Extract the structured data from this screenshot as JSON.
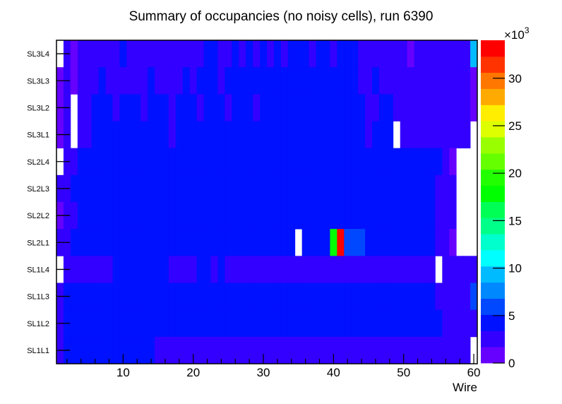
{
  "chart_data": {
    "type": "heatmap",
    "title": "Summary of occupancies (no noisy cells), run 6390",
    "xlabel": "Wire",
    "ylabel": "",
    "xlim": [
      0.5,
      60.5
    ],
    "x_ticks": [
      "10",
      "20",
      "30",
      "40",
      "50",
      "60"
    ],
    "x_tick_values": [
      10,
      20,
      30,
      40,
      50,
      60
    ],
    "y_categories_top_to_bottom": [
      "SL3L4",
      "SL3L3",
      "SL3L2",
      "SL3L1",
      "SL2L4",
      "SL2L3",
      "SL2L2",
      "SL2L1",
      "SL1L4",
      "SL1L3",
      "SL1L2",
      "SL1L1"
    ],
    "z_units_note": "x10^3",
    "colorbar": {
      "multiplier_label": "×10",
      "multiplier_exponent": "3",
      "zlim": [
        0,
        34
      ],
      "ticks": [
        "0",
        "5",
        "10",
        "15",
        "20",
        "25",
        "30"
      ],
      "tick_values": [
        0,
        5,
        10,
        15,
        20,
        25,
        30
      ],
      "palette": [
        "#6600ff",
        "#3300ff",
        "#0011ff",
        "#0048ff",
        "#0088ff",
        "#00bbff",
        "#00ffff",
        "#00ffcc",
        "#00ff88",
        "#00ff55",
        "#00ff00",
        "#22ff00",
        "#66ff00",
        "#99ff00",
        "#ddff00",
        "#ffee00",
        "#ffaa00",
        "#ff7700",
        "#ff3300",
        "#ff0000"
      ]
    },
    "rows_run_length": [
      {
        "label": "SL3L4",
        "runs": [
          [
            null,
            1
          ],
          [
            2.55,
            1
          ],
          [
            0.85,
            1
          ],
          [
            2.55,
            6
          ],
          [
            4.25,
            1
          ],
          [
            2.55,
            11
          ],
          [
            4.25,
            2
          ],
          [
            2.55,
            2
          ],
          [
            4.25,
            1
          ],
          [
            2.55,
            1
          ],
          [
            4.25,
            1
          ],
          [
            2.55,
            1
          ],
          [
            4.25,
            1
          ],
          [
            2.55,
            1
          ],
          [
            4.25,
            1
          ],
          [
            2.55,
            1
          ],
          [
            4.25,
            3
          ],
          [
            2.55,
            1
          ],
          [
            4.25,
            2
          ],
          [
            2.55,
            1
          ],
          [
            4.25,
            3
          ],
          [
            2.55,
            7
          ],
          [
            0.85,
            1
          ],
          [
            2.55,
            8
          ],
          [
            9.35,
            1
          ]
        ]
      },
      {
        "label": "SL3L3",
        "runs": [
          [
            0.85,
            1
          ],
          [
            2.55,
            1
          ],
          [
            0.85,
            1
          ],
          [
            2.55,
            3
          ],
          [
            4.25,
            1
          ],
          [
            2.55,
            6
          ],
          [
            4.25,
            1
          ],
          [
            2.55,
            4
          ],
          [
            4.25,
            1
          ],
          [
            2.55,
            1
          ],
          [
            4.25,
            3
          ],
          [
            2.55,
            1
          ],
          [
            4.25,
            19
          ],
          [
            2.55,
            2
          ],
          [
            4.25,
            1
          ],
          [
            2.55,
            13
          ],
          [
            0.85,
            1
          ]
        ]
      },
      {
        "label": "SL3L2",
        "runs": [
          [
            0.85,
            1
          ],
          [
            2.55,
            1
          ],
          [
            null,
            1
          ],
          [
            2.55,
            2
          ],
          [
            4.25,
            3
          ],
          [
            2.55,
            1
          ],
          [
            4.25,
            3
          ],
          [
            2.55,
            1
          ],
          [
            4.25,
            3
          ],
          [
            2.55,
            1
          ],
          [
            4.25,
            3
          ],
          [
            2.55,
            1
          ],
          [
            4.25,
            3
          ],
          [
            2.55,
            1
          ],
          [
            4.25,
            3
          ],
          [
            2.55,
            1
          ],
          [
            4.25,
            15
          ],
          [
            2.55,
            2
          ],
          [
            4.25,
            2
          ],
          [
            2.55,
            11
          ],
          [
            0.85,
            1
          ]
        ]
      },
      {
        "label": "SL3L1",
        "runs": [
          [
            0.85,
            1
          ],
          [
            2.55,
            1
          ],
          [
            null,
            1
          ],
          [
            2.55,
            2
          ],
          [
            4.25,
            11
          ],
          [
            2.55,
            1
          ],
          [
            4.25,
            27
          ],
          [
            2.55,
            1
          ],
          [
            4.25,
            3
          ],
          [
            null,
            1
          ],
          [
            2.55,
            10
          ],
          [
            null,
            1
          ]
        ]
      },
      {
        "label": "SL2L4",
        "runs": [
          [
            null,
            1
          ],
          [
            2.55,
            2
          ],
          [
            4.25,
            52
          ],
          [
            2.55,
            1
          ],
          [
            0.85,
            1
          ],
          [
            null,
            3
          ]
        ]
      },
      {
        "label": "SL2L3",
        "runs": [
          [
            2.55,
            2
          ],
          [
            4.25,
            52
          ],
          [
            2.55,
            3
          ],
          [
            null,
            3
          ]
        ]
      },
      {
        "label": "SL2L2",
        "runs": [
          [
            0.85,
            1
          ],
          [
            2.55,
            2
          ],
          [
            4.25,
            51
          ],
          [
            2.55,
            3
          ],
          [
            null,
            3
          ]
        ]
      },
      {
        "label": "SL2L1",
        "runs": [
          [
            2.55,
            2
          ],
          [
            4.25,
            32
          ],
          [
            null,
            1
          ],
          [
            4.25,
            4
          ],
          [
            17.85,
            1
          ],
          [
            33.15,
            1
          ],
          [
            5.95,
            3
          ],
          [
            4.25,
            10
          ],
          [
            2.55,
            2
          ],
          [
            0.85,
            1
          ],
          [
            null,
            3
          ]
        ]
      },
      {
        "label": "SL1L4",
        "runs": [
          [
            null,
            1
          ],
          [
            2.55,
            7
          ],
          [
            4.25,
            8
          ],
          [
            2.55,
            4
          ],
          [
            4.25,
            2
          ],
          [
            2.55,
            1
          ],
          [
            4.25,
            1
          ],
          [
            2.55,
            30
          ],
          [
            null,
            1
          ],
          [
            2.55,
            5
          ]
        ]
      },
      {
        "label": "SL1L3",
        "runs": [
          [
            2.55,
            1
          ],
          [
            4.25,
            53
          ],
          [
            2.55,
            5
          ],
          [
            5.95,
            1
          ]
        ]
      },
      {
        "label": "SL1L2",
        "runs": [
          [
            2.55,
            1
          ],
          [
            4.25,
            54
          ],
          [
            2.55,
            5
          ]
        ]
      },
      {
        "label": "SL1L1",
        "runs": [
          [
            2.55,
            1
          ],
          [
            4.25,
            13
          ],
          [
            2.55,
            45
          ],
          [
            null,
            1
          ]
        ]
      }
    ]
  }
}
